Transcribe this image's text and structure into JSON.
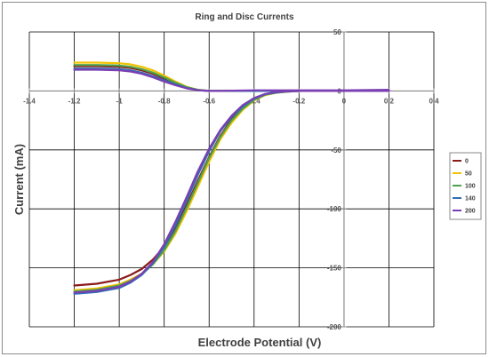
{
  "chart_data": {
    "type": "line",
    "title": "Ring and Disc Currents",
    "xlabel": "Electrode Potential (V)",
    "ylabel": "Current (mA)",
    "xlim": [
      -1.4,
      0.4
    ],
    "ylim": [
      -200,
      50
    ],
    "x_ticks": [
      "-1.4",
      "-1.2",
      "-1",
      "-0.8",
      "-0.6",
      "-0.4",
      "-0.2",
      "0",
      "0.2",
      "0.4"
    ],
    "y_ticks": [
      "50",
      "0",
      "-50",
      "-100",
      "-150",
      "-200"
    ],
    "grid": true,
    "legend_position": "right",
    "series": [
      {
        "name": "0",
        "color": "#8b1a1a",
        "ring": {
          "x": [
            -1.2,
            -1.1,
            -1.0,
            -0.95,
            -0.9,
            -0.85,
            -0.8,
            -0.75,
            -0.7,
            -0.65,
            -0.6,
            -0.55,
            -0.4,
            -0.2,
            0,
            0.2
          ],
          "y": [
            21,
            21,
            20.5,
            19.5,
            17.5,
            14.5,
            10.5,
            6.5,
            3.0,
            0.8,
            0,
            0,
            0,
            0,
            0,
            0
          ]
        },
        "disc": {
          "x": [
            -1.2,
            -1.1,
            -1.0,
            -0.95,
            -0.9,
            -0.85,
            -0.8,
            -0.75,
            -0.7,
            -0.65,
            -0.6,
            -0.55,
            -0.5,
            -0.45,
            -0.4,
            -0.35,
            -0.3,
            -0.25,
            -0.2,
            0,
            0.2
          ],
          "y": [
            -165,
            -163.5,
            -160,
            -156,
            -151,
            -143,
            -132,
            -116,
            -97,
            -76,
            -56,
            -38,
            -24,
            -14,
            -7,
            -3,
            -1.3,
            -0.5,
            0,
            0,
            0
          ]
        }
      },
      {
        "name": "50",
        "color": "#f2c200",
        "ring": {
          "x": [
            -1.2,
            -1.1,
            -1.0,
            -0.95,
            -0.9,
            -0.85,
            -0.8,
            -0.75,
            -0.7,
            -0.65,
            -0.6,
            -0.55,
            -0.4,
            -0.2,
            0,
            0.2
          ],
          "y": [
            24,
            24,
            23.5,
            22.5,
            20.5,
            17.5,
            13,
            8,
            3.5,
            1.0,
            0,
            0,
            0,
            0,
            0,
            0
          ]
        },
        "disc": {
          "x": [
            -1.2,
            -1.1,
            -1.0,
            -0.95,
            -0.9,
            -0.85,
            -0.8,
            -0.75,
            -0.7,
            -0.65,
            -0.6,
            -0.55,
            -0.5,
            -0.45,
            -0.4,
            -0.35,
            -0.3,
            -0.25,
            -0.2,
            0,
            0.2
          ],
          "y": [
            -169,
            -167.5,
            -164,
            -160,
            -155,
            -147,
            -136,
            -121,
            -102,
            -81,
            -60,
            -41,
            -27,
            -16,
            -8,
            -3.5,
            -1.5,
            -0.5,
            0,
            0,
            0
          ]
        }
      },
      {
        "name": "100",
        "color": "#4ea24e",
        "ring": {
          "x": [
            -1.2,
            -1.1,
            -1.0,
            -0.95,
            -0.9,
            -0.85,
            -0.8,
            -0.75,
            -0.7,
            -0.65,
            -0.6,
            -0.55,
            -0.4,
            -0.2,
            0,
            0.2
          ],
          "y": [
            22,
            22,
            21.5,
            20.5,
            18.5,
            15.5,
            11.5,
            7,
            3.2,
            0.9,
            0,
            0,
            0,
            0,
            0,
            0
          ]
        },
        "disc": {
          "x": [
            -1.2,
            -1.1,
            -1.0,
            -0.95,
            -0.9,
            -0.85,
            -0.8,
            -0.75,
            -0.7,
            -0.65,
            -0.6,
            -0.55,
            -0.5,
            -0.45,
            -0.4,
            -0.35,
            -0.3,
            -0.25,
            -0.2,
            0,
            0.2
          ],
          "y": [
            -170,
            -168.5,
            -165,
            -161,
            -155.5,
            -147,
            -135,
            -119,
            -99,
            -78,
            -57,
            -39,
            -25,
            -15,
            -7.5,
            -3.2,
            -1.4,
            -0.5,
            0,
            0,
            0
          ]
        }
      },
      {
        "name": "140",
        "color": "#2f6db5",
        "ring": {
          "x": [
            -1.2,
            -1.1,
            -1.0,
            -0.95,
            -0.9,
            -0.85,
            -0.8,
            -0.75,
            -0.7,
            -0.65,
            -0.6,
            -0.55,
            -0.4,
            -0.2,
            0,
            0.2
          ],
          "y": [
            19,
            19,
            18.5,
            17.5,
            15.5,
            12.5,
            9,
            5.5,
            2.5,
            0.7,
            0,
            0,
            0,
            0,
            0,
            0
          ]
        },
        "disc": {
          "x": [
            -1.2,
            -1.1,
            -1.0,
            -0.95,
            -0.9,
            -0.85,
            -0.8,
            -0.75,
            -0.7,
            -0.65,
            -0.6,
            -0.55,
            -0.5,
            -0.45,
            -0.4,
            -0.35,
            -0.3,
            -0.25,
            -0.2,
            0,
            0.2
          ],
          "y": [
            -172,
            -170.5,
            -167,
            -162.5,
            -156,
            -146,
            -132,
            -114,
            -93,
            -71,
            -51,
            -34,
            -22,
            -13,
            -6.5,
            -2.8,
            -1.2,
            -0.4,
            0,
            0,
            0
          ]
        }
      },
      {
        "name": "200",
        "color": "#7b3fb3",
        "ring": {
          "x": [
            -1.2,
            -1.1,
            -1.0,
            -0.95,
            -0.9,
            -0.85,
            -0.8,
            -0.75,
            -0.7,
            -0.65,
            -0.6,
            -0.55,
            -0.4,
            -0.2,
            0,
            0.2
          ],
          "y": [
            18,
            18,
            17.5,
            16.5,
            14.5,
            11.5,
            8,
            4.8,
            2.2,
            0.6,
            0,
            0,
            0.5,
            0.5,
            0.5,
            1.0
          ]
        },
        "disc": {
          "x": [
            -1.2,
            -1.1,
            -1.0,
            -0.95,
            -0.9,
            -0.85,
            -0.8,
            -0.75,
            -0.7,
            -0.65,
            -0.6,
            -0.55,
            -0.5,
            -0.45,
            -0.4,
            -0.35,
            -0.3,
            -0.25,
            -0.2,
            0,
            0.2
          ],
          "y": [
            -171,
            -169.5,
            -166,
            -161.5,
            -155,
            -145,
            -130,
            -111,
            -90,
            -68,
            -49,
            -33,
            -21,
            -12,
            -6,
            -2.5,
            -1,
            -0.3,
            0,
            0,
            0
          ]
        }
      }
    ]
  }
}
